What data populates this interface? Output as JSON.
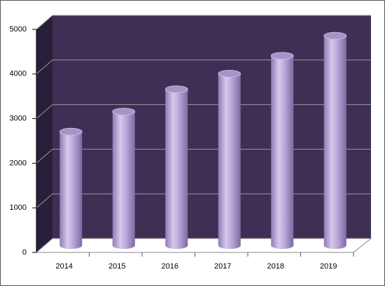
{
  "chart_data": {
    "type": "bar",
    "categories": [
      "2014",
      "2015",
      "2016",
      "2017",
      "2018",
      "2019"
    ],
    "values": [
      2550,
      3000,
      3500,
      3850,
      4250,
      4700
    ],
    "color": "#b9a6d8",
    "ylim": [
      0,
      5000
    ],
    "yticks": [
      0,
      1000,
      2000,
      3000,
      4000,
      5000
    ],
    "grid": true
  }
}
